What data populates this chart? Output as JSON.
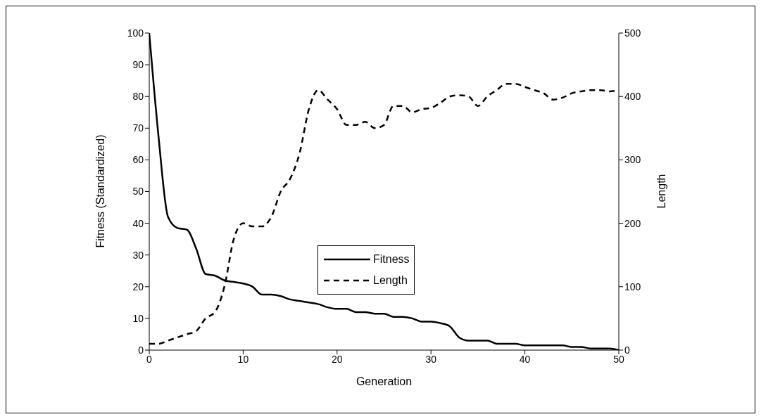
{
  "chart_data": {
    "type": "line",
    "xlabel": "Generation",
    "ylabel": "Fitness (Standardized)",
    "y2label": "Length",
    "x": [
      0,
      1,
      2,
      3,
      4,
      5,
      6,
      7,
      8,
      9,
      10,
      11,
      12,
      13,
      14,
      15,
      16,
      17,
      18,
      19,
      20,
      21,
      22,
      23,
      24,
      25,
      26,
      27,
      28,
      29,
      30,
      31,
      32,
      33,
      34,
      35,
      36,
      37,
      38,
      39,
      40,
      41,
      42,
      43,
      44,
      45,
      46,
      47,
      48,
      49,
      50
    ],
    "xlim": [
      0,
      50
    ],
    "xticks": [
      0,
      10,
      20,
      30,
      40,
      50
    ],
    "ylim": [
      0,
      100
    ],
    "yticks": [
      0,
      10,
      20,
      30,
      40,
      50,
      60,
      70,
      80,
      90,
      100
    ],
    "y2lim": [
      0,
      500
    ],
    "y2ticks": [
      0,
      100,
      200,
      300,
      400,
      500
    ],
    "grid": false,
    "legend": "center",
    "marker": "none",
    "series": [
      {
        "name": "Fitness",
        "color": "#000000",
        "line_style": "solid",
        "values": [
          100,
          67,
          42,
          38.5,
          38,
          32,
          24,
          23.5,
          22,
          21.5,
          21,
          20,
          17.5,
          17.5,
          17,
          16,
          15.5,
          15,
          14.5,
          13.5,
          13,
          13,
          12,
          12,
          11.5,
          11.5,
          10.5,
          10.5,
          10,
          9,
          9,
          8.5,
          7.5,
          4,
          3,
          3,
          3,
          2,
          2,
          2,
          1.5,
          1.5,
          1.5,
          1.5,
          1.5,
          1,
          1,
          0.5,
          0.5,
          0.5,
          0
        ]
      },
      {
        "name": "Length",
        "color": "#000000",
        "line_style": "dashed",
        "axis": "y2",
        "values": [
          10,
          10,
          15,
          20,
          25,
          30,
          50,
          60,
          100,
          175,
          200,
          195,
          195,
          210,
          250,
          270,
          310,
          380,
          410,
          395,
          380,
          355,
          355,
          360,
          350,
          355,
          385,
          385,
          375,
          380,
          382,
          390,
          400,
          402,
          400,
          385,
          400,
          410,
          420,
          420,
          415,
          410,
          405,
          395,
          398,
          405,
          408,
          410,
          410,
          408,
          410
        ]
      }
    ]
  }
}
